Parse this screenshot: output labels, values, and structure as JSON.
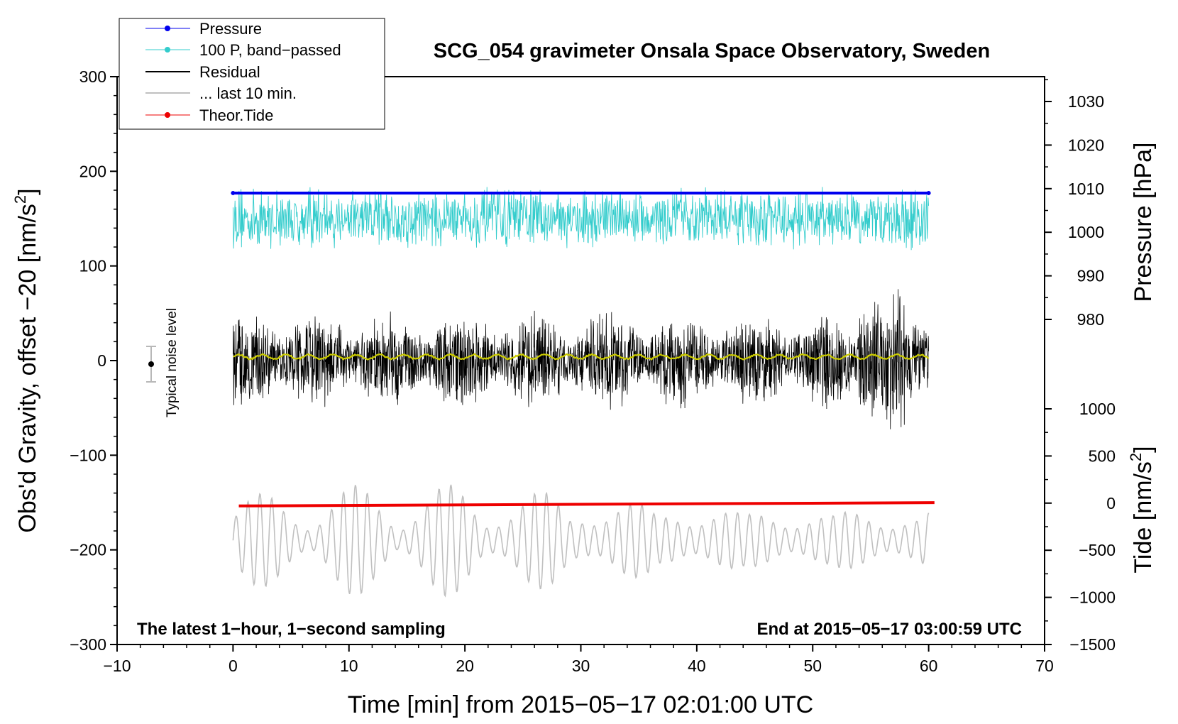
{
  "chart_data": {
    "type": "line",
    "title": "SCG_054 gravimeter Onsala Space Observatory, Sweden",
    "xlabel": "Time [min] from 2015−05−17 02:01:00 UTC",
    "ylabel_left": "Obs'd Gravity, offset −20 [nm/s",
    "ylabel_left_sup": "2",
    "ylabel_left_end": "]",
    "ylabel_right_pressure": "Pressure [hPa]",
    "ylabel_right_tide": "Tide [nm/s",
    "ylabel_right_tide_sup": "2",
    "ylabel_right_tide_end": "]",
    "xlim": [
      -10,
      70
    ],
    "ylim_left": [
      -300,
      300
    ],
    "x_ticks": [
      "−10",
      "0",
      "10",
      "20",
      "30",
      "40",
      "50",
      "60",
      "70"
    ],
    "y_ticks_left": [
      "300",
      "200",
      "100",
      "0",
      "−100",
      "−200",
      "−300"
    ],
    "y_ticks_pressure": [
      "1030",
      "1020",
      "1010",
      "1000",
      "990",
      "980"
    ],
    "y_ticks_tide": [
      "1000",
      "500",
      "0",
      "−500",
      "−1000",
      "−1500"
    ],
    "note_left": "The latest 1−hour, 1−second sampling",
    "note_right": "End at 2015−05−17 03:00:59 UTC",
    "noise_label": "Typical noise level",
    "noise_bar": {
      "x": -7,
      "center": 0,
      "half_range": 19
    },
    "legend": [
      {
        "label": "Pressure",
        "color": "#0000ee",
        "marker": true
      },
      {
        "label": "100 P, band−passed",
        "color": "#33cccc",
        "marker": true
      },
      {
        "label": "Residual",
        "color": "#000000",
        "marker": false
      },
      {
        "label": "... last 10 min.",
        "color": "#c0c0c0",
        "marker": false
      },
      {
        "label": "Theor.Tide",
        "color": "#ee0000",
        "marker": true
      }
    ],
    "series": [
      {
        "name": "Pressure",
        "units": "hPa",
        "x_range": [
          0,
          60
        ],
        "value": 1009,
        "color": "#0000ee"
      },
      {
        "name": "100 P, band−passed",
        "units": "nm/s2 (plotted about 150)",
        "x_range": [
          0,
          60
        ],
        "level": 150,
        "amplitude": 35,
        "color": "#33cccc"
      },
      {
        "name": "Residual",
        "units": "nm/s2",
        "x_range": [
          0,
          60
        ],
        "level": 0,
        "amplitude": 45,
        "color": "#000000"
      },
      {
        "name": "Smoothed residual",
        "units": "nm/s2",
        "x_range": [
          0,
          60
        ],
        "level": 4,
        "color": "#cccc00"
      },
      {
        "name": "... last 10 min.",
        "units": "nm/s2 (plotted about −190)",
        "x_range": [
          0,
          60
        ],
        "level": -190,
        "amplitude": 40,
        "color": "#c0c0c0"
      },
      {
        "name": "Theor.Tide",
        "units": "tide nm/s2",
        "x": [
          0.5,
          60.5
        ],
        "values": [
          -30,
          5
        ],
        "color": "#ee0000"
      }
    ]
  }
}
